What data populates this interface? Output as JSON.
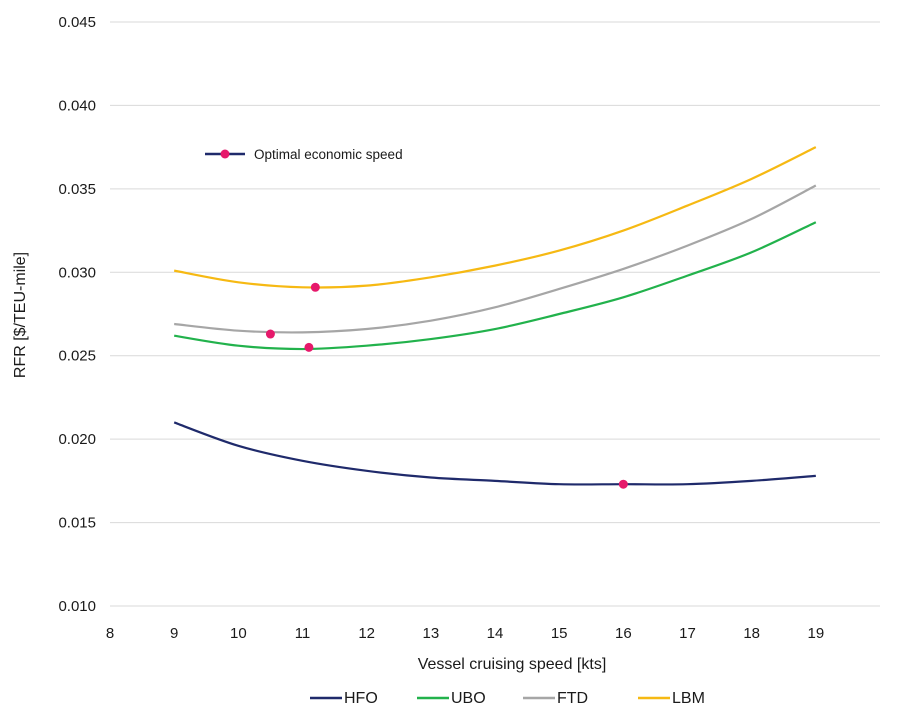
{
  "chart_data": {
    "type": "line",
    "xlabel": "Vessel cruising speed [kts]",
    "ylabel": "RFR  [$/TEU-mile]",
    "xlim": [
      8,
      20
    ],
    "ylim": [
      0.01,
      0.045
    ],
    "xticks": [
      "8",
      "9",
      "10",
      "11",
      "12",
      "13",
      "14",
      "15",
      "16",
      "17",
      "18",
      "19"
    ],
    "yticks": [
      "0.010",
      "0.015",
      "0.020",
      "0.025",
      "0.030",
      "0.035",
      "0.040",
      "0.045"
    ],
    "grid": "horizontal",
    "legend_position": "bottom",
    "annotation": "Optimal economic speed",
    "series": [
      {
        "name": "HFO",
        "color": "#1f2a6b",
        "x": [
          9,
          10,
          11,
          12,
          13,
          14,
          15,
          16,
          17,
          18,
          19
        ],
        "y": [
          0.021,
          0.0196,
          0.0187,
          0.0181,
          0.0177,
          0.0175,
          0.0173,
          0.0173,
          0.0173,
          0.0175,
          0.0178
        ],
        "optimum": [
          16.0,
          0.0173
        ]
      },
      {
        "name": "UBO",
        "color": "#22b24c",
        "x": [
          9,
          10,
          11,
          12,
          13,
          14,
          15,
          16,
          17,
          18,
          19
        ],
        "y": [
          0.0262,
          0.0256,
          0.0254,
          0.0256,
          0.026,
          0.0266,
          0.0275,
          0.0285,
          0.0298,
          0.0312,
          0.033
        ],
        "optimum": [
          11.1,
          0.0255
        ]
      },
      {
        "name": "FTD",
        "color": "#a6a6a6",
        "x": [
          9,
          10,
          11,
          12,
          13,
          14,
          15,
          16,
          17,
          18,
          19
        ],
        "y": [
          0.0269,
          0.0265,
          0.0264,
          0.0266,
          0.0271,
          0.0279,
          0.029,
          0.0302,
          0.0316,
          0.0332,
          0.0352
        ],
        "optimum": [
          10.5,
          0.0263
        ]
      },
      {
        "name": "LBM",
        "color": "#f6b913",
        "x": [
          9,
          10,
          11,
          12,
          13,
          14,
          15,
          16,
          17,
          18,
          19
        ],
        "y": [
          0.0301,
          0.0294,
          0.0291,
          0.0292,
          0.0297,
          0.0304,
          0.0313,
          0.0325,
          0.034,
          0.0356,
          0.0375
        ],
        "optimum": [
          11.2,
          0.0291
        ]
      }
    ],
    "optimum_marker_color": "#e6196b"
  }
}
